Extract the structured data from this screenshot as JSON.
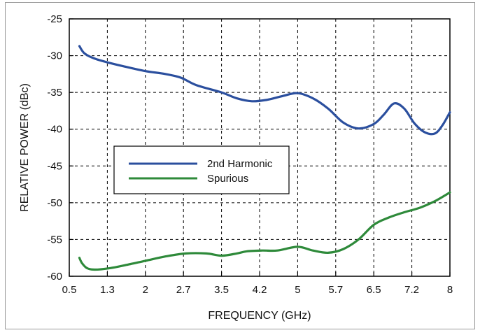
{
  "chart_data": {
    "type": "line",
    "title": "",
    "xlabel": "FREQUENCY (GHz)",
    "ylabel": "RELATIVE POWER (dBc)",
    "xlim": [
      0.5,
      8
    ],
    "ylim": [
      -60,
      -25
    ],
    "x_tick_labels": [
      "0.5",
      "1.3",
      "2",
      "2.7",
      "3.5",
      "4.2",
      "5",
      "5.7",
      "6.5",
      "7.2",
      "8"
    ],
    "y_tick_labels": [
      "-25",
      "-30",
      "-35",
      "-40",
      "-45",
      "-50",
      "-55",
      "-60"
    ],
    "grid": true,
    "legend_position": "center-left",
    "series": [
      {
        "name": "2nd Harmonic",
        "color": "#2b4f9e",
        "x": [
          0.7,
          0.8,
          1.0,
          1.3,
          1.6,
          2.0,
          2.4,
          2.7,
          3.0,
          3.5,
          3.8,
          4.1,
          4.4,
          4.7,
          5.0,
          5.3,
          5.6,
          5.9,
          6.2,
          6.5,
          6.7,
          6.9,
          7.1,
          7.3,
          7.5,
          7.7,
          7.85,
          8.0
        ],
        "y": [
          -28.7,
          -29.7,
          -30.4,
          -31.0,
          -31.5,
          -32.1,
          -32.5,
          -33.0,
          -34.0,
          -35.0,
          -35.8,
          -36.2,
          -36.0,
          -35.5,
          -35.1,
          -35.8,
          -37.2,
          -39.1,
          -39.9,
          -39.3,
          -38.0,
          -36.5,
          -37.2,
          -39.2,
          -40.4,
          -40.6,
          -39.5,
          -37.7
        ]
      },
      {
        "name": "Spurious",
        "color": "#2e8a3a",
        "x": [
          0.7,
          0.75,
          0.85,
          1.0,
          1.3,
          1.6,
          2.0,
          2.4,
          2.8,
          3.2,
          3.5,
          3.8,
          4.0,
          4.3,
          4.6,
          5.0,
          5.3,
          5.6,
          5.9,
          6.2,
          6.5,
          6.8,
          7.1,
          7.4,
          7.7,
          8.0
        ],
        "y": [
          -57.5,
          -58.2,
          -58.9,
          -59.1,
          -58.9,
          -58.5,
          -57.9,
          -57.3,
          -56.9,
          -56.9,
          -57.2,
          -56.9,
          -56.6,
          -56.5,
          -56.5,
          -56.0,
          -56.5,
          -56.8,
          -56.3,
          -55.0,
          -53.0,
          -52.0,
          -51.3,
          -50.7,
          -49.8,
          -48.6
        ]
      }
    ]
  }
}
